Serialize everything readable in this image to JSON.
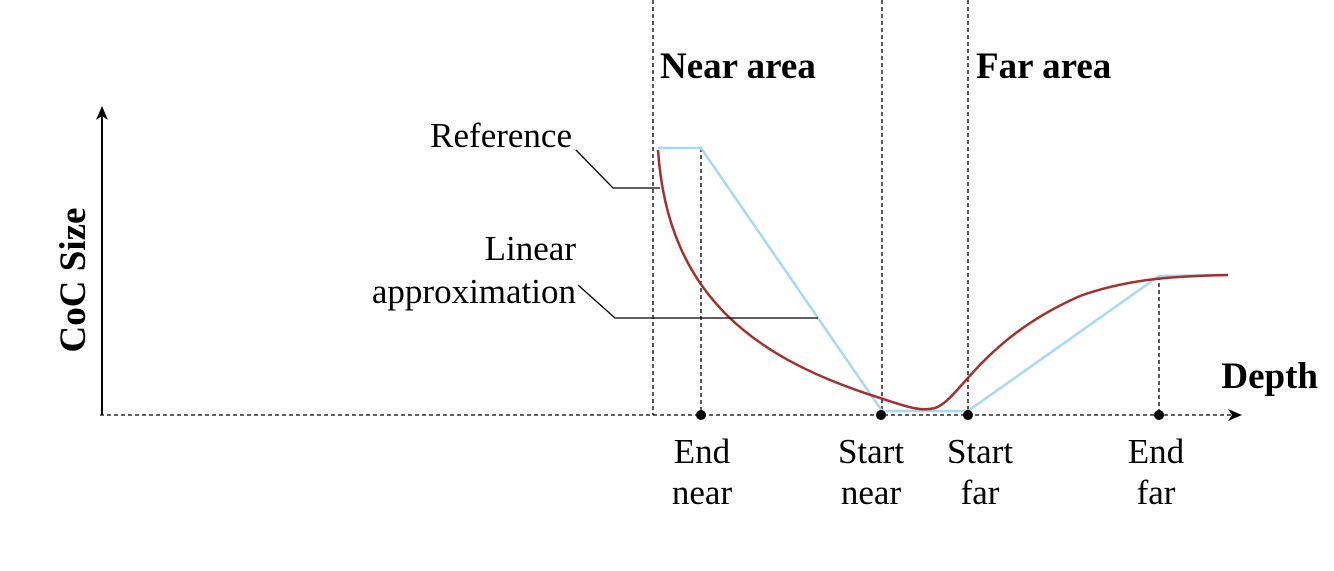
{
  "areas": [
    "Near area",
    "Far area"
  ],
  "axes": {
    "y": "CoC Size",
    "x": "Depth"
  },
  "curves": [
    {
      "label": [
        "Reference"
      ]
    },
    {
      "label": [
        "Linear",
        "approximation"
      ]
    }
  ],
  "markers": [
    [
      "End",
      "near"
    ],
    [
      "Start",
      "near"
    ],
    [
      "Start",
      "far"
    ],
    [
      "End",
      "far"
    ]
  ]
}
